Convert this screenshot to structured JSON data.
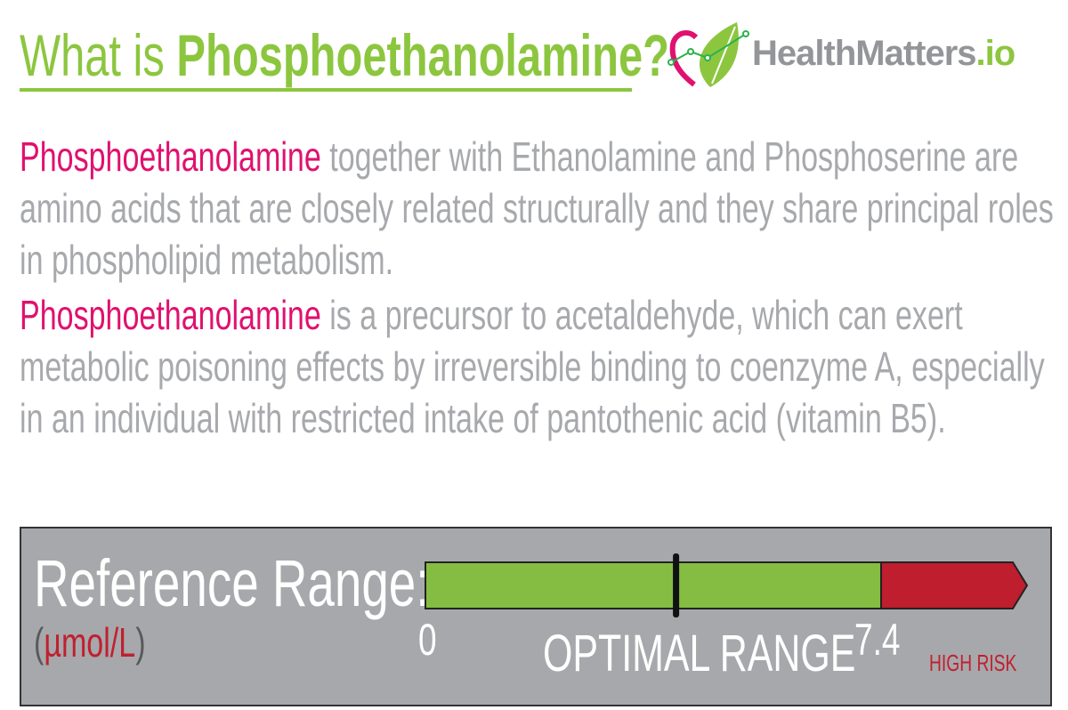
{
  "header": {
    "title_prefix": "What is ",
    "title_term": "Phosphoethanolamine?",
    "logo": {
      "name": "HealthMatters",
      "suffix": ".io",
      "brand_gray": "#939598",
      "brand_green": "#8cc63f",
      "brand_pink": "#e0116f"
    }
  },
  "body": {
    "highlight_color": "#e0116f",
    "lines": [
      {
        "highlight": "Phosphoethanolamine",
        "text": " together with Ethanolamine and Phosphoserine are"
      },
      {
        "highlight": "",
        "text": "amino acids that are closely related structurally and they share principal roles"
      },
      {
        "highlight": "",
        "text": "in phospholipid metabolism."
      },
      {
        "highlight": "Phosphoethanolamine",
        "text": " is a precursor to acetaldehyde, which can exert"
      },
      {
        "highlight": "",
        "text": "metabolic poisoning effects by irreversible binding to coenzyme A, especially"
      },
      {
        "highlight": "",
        "text": "in an individual with restricted intake of pantothenic acid (vitamin B5)."
      }
    ]
  },
  "reference": {
    "title": "Reference Range:",
    "unit_open": "(",
    "unit": "µmol/L",
    "unit_close": ")",
    "min_label": "0",
    "max_label": "7.4",
    "optimal_label": "OPTIMAL RANGE",
    "high_label": "HIGH RISK",
    "optimal_min": 0,
    "optimal_max": 7.4,
    "marker_fraction_of_optimal": 0.55,
    "colors": {
      "optimal": "#84bd41",
      "high": "#be1e2d",
      "panel": "#a7a8ab"
    }
  }
}
